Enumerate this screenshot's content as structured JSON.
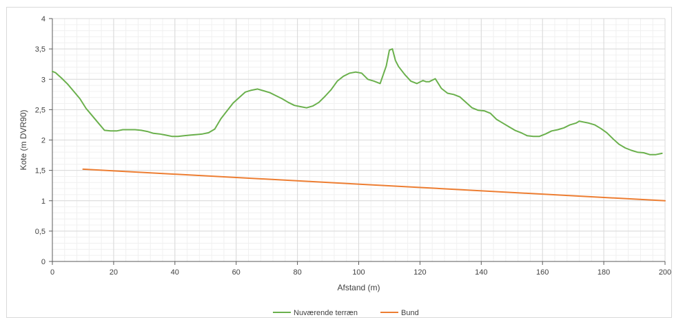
{
  "chart_data": {
    "type": "line",
    "xlabel": "Afstand (m)",
    "ylabel": "Kote (m DVR90)",
    "xlim": [
      0,
      200
    ],
    "ylim": [
      0,
      4
    ],
    "x_ticks": [
      "0",
      "20",
      "40",
      "60",
      "80",
      "100",
      "120",
      "140",
      "160",
      "180",
      "200"
    ],
    "y_ticks": [
      "0",
      "0,5",
      "1",
      "1,5",
      "2",
      "2,5",
      "3",
      "3,5",
      "4"
    ],
    "grid": true,
    "legend_position": "bottom",
    "series": [
      {
        "name": "Nuværende terræn",
        "color": "#6ab04c",
        "x": [
          0,
          1,
          3,
          5,
          7,
          9,
          11,
          13,
          15,
          17,
          19,
          21,
          23,
          25,
          27,
          29,
          31,
          33,
          35,
          37,
          39,
          41,
          43,
          45,
          47,
          49,
          51,
          53,
          55,
          57,
          59,
          61,
          63,
          65,
          67,
          69,
          71,
          73,
          75,
          77,
          79,
          81,
          83,
          85,
          87,
          89,
          91,
          93,
          95,
          97,
          99,
          101,
          103,
          105,
          107,
          109,
          110,
          111,
          112,
          113,
          115,
          117,
          119,
          121,
          122,
          123,
          125,
          127,
          129,
          131,
          133,
          135,
          137,
          139,
          141,
          143,
          145,
          147,
          149,
          151,
          153,
          155,
          157,
          159,
          161,
          163,
          165,
          167,
          169,
          171,
          172,
          175,
          177,
          179,
          181,
          183,
          185,
          187,
          189,
          191,
          193,
          195,
          197,
          199
        ],
        "y": [
          3.13,
          3.11,
          3.02,
          2.92,
          2.8,
          2.68,
          2.52,
          2.4,
          2.28,
          2.16,
          2.15,
          2.15,
          2.17,
          2.17,
          2.17,
          2.16,
          2.14,
          2.11,
          2.1,
          2.08,
          2.06,
          2.06,
          2.07,
          2.08,
          2.09,
          2.1,
          2.12,
          2.18,
          2.35,
          2.48,
          2.61,
          2.7,
          2.79,
          2.82,
          2.84,
          2.81,
          2.78,
          2.73,
          2.68,
          2.62,
          2.57,
          2.55,
          2.53,
          2.56,
          2.62,
          2.72,
          2.83,
          2.97,
          3.05,
          3.1,
          3.12,
          3.1,
          3.0,
          2.97,
          2.93,
          3.22,
          3.48,
          3.5,
          3.31,
          3.21,
          3.08,
          2.97,
          2.93,
          2.98,
          2.96,
          2.96,
          3.01,
          2.85,
          2.77,
          2.75,
          2.71,
          2.62,
          2.53,
          2.49,
          2.48,
          2.44,
          2.34,
          2.28,
          2.22,
          2.16,
          2.12,
          2.07,
          2.06,
          2.06,
          2.1,
          2.15,
          2.17,
          2.2,
          2.25,
          2.28,
          2.31,
          2.28,
          2.25,
          2.19,
          2.12,
          2.02,
          1.93,
          1.87,
          1.83,
          1.8,
          1.79,
          1.76,
          1.76,
          1.78
        ]
      },
      {
        "name": "Bund",
        "color": "#ed7d31",
        "x": [
          10,
          200
        ],
        "y": [
          1.52,
          1.0
        ]
      }
    ]
  }
}
